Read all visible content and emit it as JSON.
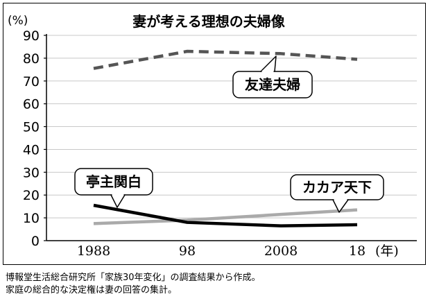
{
  "chart_data": {
    "type": "line",
    "title": "妻が考える理想の夫婦像",
    "yunit": "(%)",
    "xunit": "(年)",
    "categories": [
      "1988",
      "98",
      "2008",
      "18"
    ],
    "ylim": [
      0,
      90
    ],
    "yticks": [
      0,
      10,
      20,
      30,
      40,
      50,
      60,
      70,
      80,
      90
    ],
    "grid": "horizontal",
    "series": [
      {
        "name": "友達夫婦",
        "values": [
          75.5,
          83,
          82,
          79.5
        ],
        "color": "#555555",
        "style": "dashed"
      },
      {
        "name": "亭主関白",
        "values": [
          15.5,
          8,
          6.5,
          7
        ],
        "color": "#000000",
        "style": "solid"
      },
      {
        "name": "カカア天下",
        "values": [
          7.5,
          9,
          11.5,
          13.5
        ],
        "color": "#aaaaaa",
        "style": "solid"
      }
    ]
  },
  "notes": [
    "博報堂生活総合研究所「家族30年変化」の調査結果から作成。",
    "家庭の総合的な決定権は妻の回答の集計。"
  ]
}
